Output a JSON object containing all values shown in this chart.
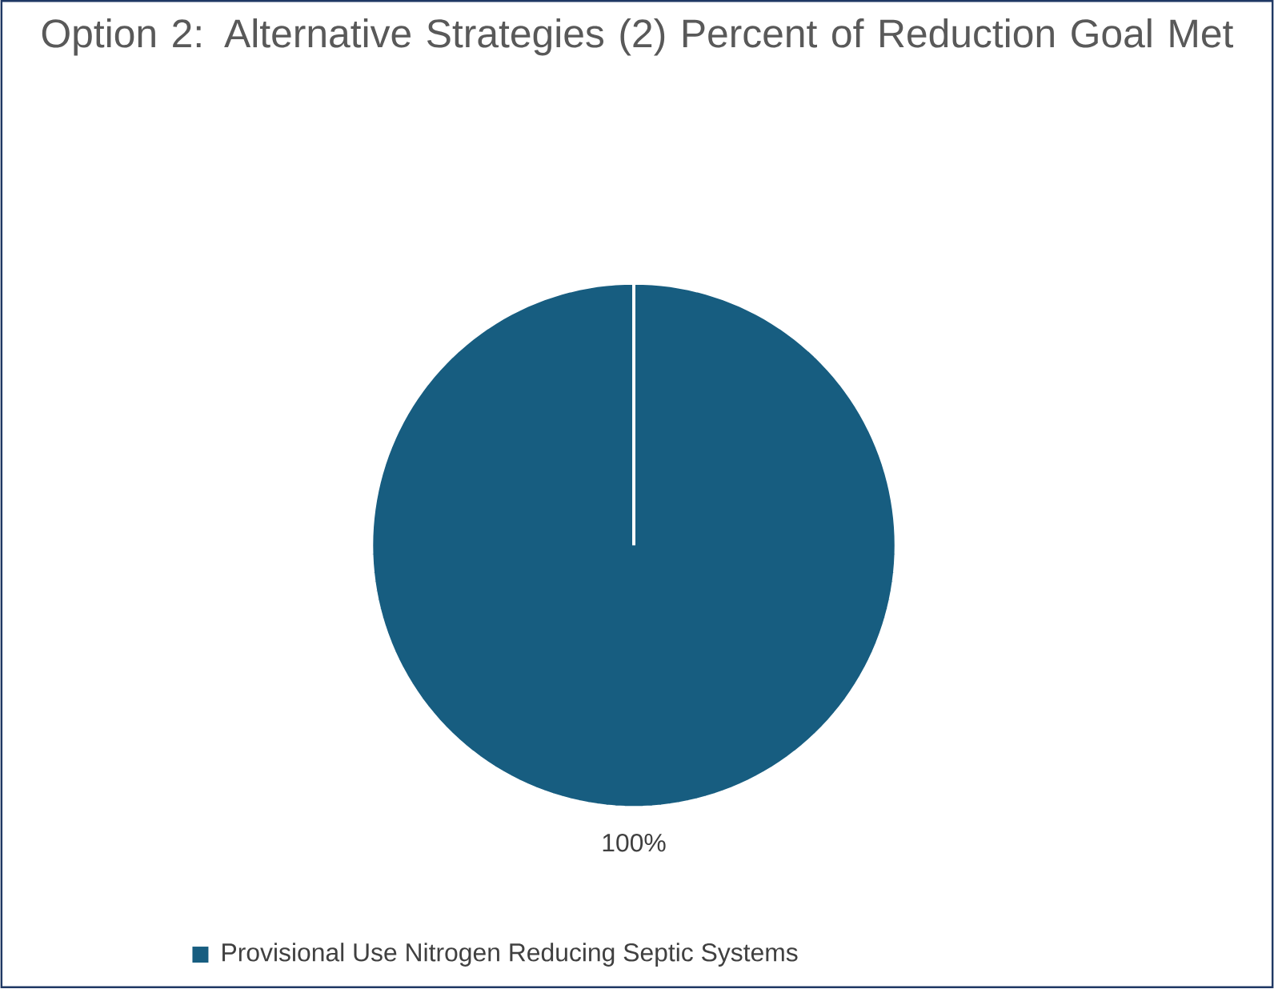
{
  "chart_data": {
    "type": "pie",
    "title": "Option 2: Alternative Strategies (2) Percent of Reduction Goal Met",
    "categories": [
      "Provisional Use Nitrogen Reducing Septic Systems"
    ],
    "values": [
      100
    ],
    "colors": [
      "#175d80"
    ],
    "value_labels": [
      "100%"
    ],
    "legend": "bottom"
  }
}
